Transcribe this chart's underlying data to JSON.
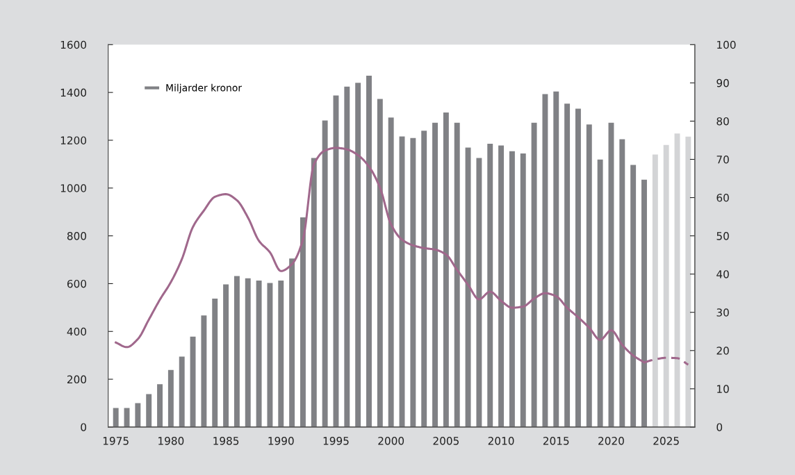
{
  "chart_data": {
    "type": "bar",
    "x": [
      1975,
      1976,
      1977,
      1978,
      1979,
      1980,
      1981,
      1982,
      1983,
      1984,
      1985,
      1986,
      1987,
      1988,
      1989,
      1990,
      1991,
      1992,
      1993,
      1994,
      1995,
      1996,
      1997,
      1998,
      1999,
      2000,
      2001,
      2002,
      2003,
      2004,
      2005,
      2006,
      2007,
      2008,
      2009,
      2010,
      2011,
      2012,
      2013,
      2014,
      2015,
      2016,
      2017,
      2018,
      2019,
      2020,
      2021,
      2022,
      2023,
      2024,
      2025,
      2026,
      2027
    ],
    "series": [
      {
        "name": "Miljarder kronor",
        "color": "#808185",
        "colors": [
          "#808185",
          "#808185",
          "#808185",
          "#808185",
          "#808185",
          "#808185",
          "#808185",
          "#808185",
          "#808185",
          "#808185",
          "#808185",
          "#808185",
          "#808185",
          "#808185",
          "#808185",
          "#808185",
          "#808185",
          "#808185",
          "#808185",
          "#808185",
          "#808185",
          "#808185",
          "#808185",
          "#808185",
          "#808185",
          "#808185",
          "#808185",
          "#808185",
          "#808185",
          "#808185",
          "#808185",
          "#808185",
          "#808185",
          "#808185",
          "#808185",
          "#808185",
          "#808185",
          "#808185",
          "#808185",
          "#808185",
          "#808185",
          "#808185",
          "#808185",
          "#808185",
          "#808185",
          "#808185",
          "#808185",
          "#808185",
          "#808185",
          "#d3d4d6",
          "#d3d4d6",
          "#d3d4d6",
          "#d3d4d6"
        ],
        "values": [
          80,
          80,
          100,
          138,
          179,
          239,
          295,
          378,
          467,
          537,
          597,
          632,
          622,
          613,
          603,
          613,
          705,
          877,
          1126,
          1283,
          1387,
          1424,
          1440,
          1470,
          1373,
          1295,
          1216,
          1209,
          1240,
          1273,
          1316,
          1273,
          1169,
          1126,
          1185,
          1178,
          1154,
          1145,
          1273,
          1393,
          1404,
          1353,
          1332,
          1266,
          1119,
          1273,
          1204,
          1097,
          1035,
          1140,
          1180,
          1228,
          1215
        ]
      },
      {
        "type": "line",
        "axis": "y2",
        "color": "#a0688c",
        "line_style": "solid",
        "x": [
          1975,
          1976,
          1977,
          1978,
          1979,
          1980,
          1981,
          1982,
          1983,
          1984,
          1985,
          1986,
          1987,
          1988,
          1989,
          1990,
          1991,
          1992,
          1993,
          1994,
          1995,
          1996,
          1997,
          1998,
          1999,
          2000,
          2001,
          2002,
          2003,
          2004,
          2005,
          2006,
          2007,
          2008,
          2009,
          2010,
          2011,
          2012,
          2013,
          2014,
          2015,
          2016,
          2017,
          2018,
          2019,
          2020,
          2021,
          2022,
          2023
        ],
        "values": [
          22.1,
          20.9,
          23.0,
          28.1,
          33.3,
          37.9,
          43.9,
          52.3,
          56.6,
          60.2,
          60.9,
          59.3,
          54.8,
          48.7,
          45.7,
          40.8,
          42.6,
          49,
          68.7,
          72.3,
          73.0,
          72.6,
          71.1,
          68.1,
          62.6,
          53,
          49.0,
          47.5,
          46.8,
          46.4,
          45.1,
          41.1,
          37.2,
          33.4,
          35.4,
          33.0,
          31.2,
          31.5,
          33.6,
          35.0,
          34.2,
          31.2,
          28.7,
          26.0,
          22.8,
          25.3,
          21.5,
          18.7,
          16.9
        ]
      },
      {
        "type": "line",
        "axis": "y2",
        "color": "#a0688c",
        "line_style": "dashed",
        "x": [
          2023,
          2024,
          2025,
          2026,
          2027
        ],
        "values": [
          16.9,
          17.7,
          18.1,
          18.0,
          16.3
        ]
      }
    ],
    "xlim": [
      1974.3,
      2027.6
    ],
    "xticks": [
      1975,
      1980,
      1985,
      1990,
      1995,
      2000,
      2005,
      2010,
      2015,
      2020,
      2025
    ],
    "ylim": [
      0,
      1600
    ],
    "yticks": [
      0,
      200,
      400,
      600,
      800,
      1000,
      1200,
      1400,
      1600
    ],
    "y2lim": [
      0,
      100
    ],
    "y2ticks": [
      0,
      10,
      20,
      30,
      40,
      50,
      60,
      70,
      80,
      90,
      100
    ],
    "legend": "top left",
    "grid": false,
    "marker": "none"
  }
}
